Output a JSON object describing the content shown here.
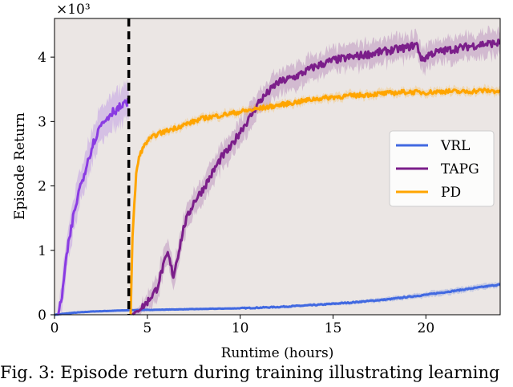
{
  "chart_data": {
    "type": "line",
    "xlabel": "Runtime (hours)",
    "ylabel": "Episode Return",
    "y_multiplier": "×10³",
    "xlim": [
      0,
      24
    ],
    "ylim": [
      0,
      4.6
    ],
    "x_ticks": [
      0,
      5,
      10,
      15,
      20
    ],
    "y_ticks": [
      0,
      1,
      2,
      3,
      4
    ],
    "grid": false,
    "background": "#ebe6e4",
    "legend_position": "right",
    "vline": {
      "x": 4.0,
      "style": "dashed",
      "color": "#000000"
    },
    "series": [
      {
        "name": "VRL",
        "color": "#4169e1",
        "x": [
          0,
          1,
          2,
          3,
          4,
          6,
          8,
          10,
          12,
          14,
          16,
          18,
          20,
          22,
          24
        ],
        "y": [
          0,
          0.03,
          0.05,
          0.06,
          0.07,
          0.08,
          0.09,
          0.1,
          0.12,
          0.15,
          0.19,
          0.24,
          0.31,
          0.39,
          0.47
        ]
      },
      {
        "name": "TAPG",
        "color": "#7b1e8a",
        "x": [
          4.2,
          4.6,
          5.0,
          5.5,
          5.8,
          6.1,
          6.4,
          6.7,
          7.0,
          7.5,
          8.0,
          8.5,
          9.0,
          9.5,
          10.0,
          10.5,
          11.0,
          11.5,
          12.0,
          13.0,
          14.0,
          15.0,
          16.0,
          17.0,
          18.0,
          19.0,
          19.5,
          19.8,
          20.2,
          21.0,
          22.0,
          23.0,
          24.0
        ],
        "y": [
          0,
          0.08,
          0.2,
          0.4,
          0.7,
          0.95,
          0.6,
          1.0,
          1.4,
          1.75,
          1.95,
          2.2,
          2.45,
          2.6,
          2.85,
          3.05,
          3.3,
          3.45,
          3.6,
          3.7,
          3.85,
          3.95,
          4.0,
          4.05,
          4.1,
          4.15,
          4.2,
          3.95,
          4.05,
          4.1,
          4.15,
          4.2,
          4.22
        ]
      },
      {
        "name": "PD",
        "color": "#ffa500",
        "x": [
          4.1,
          4.2,
          4.4,
          4.6,
          5.0,
          5.5,
          6.0,
          7.0,
          8.0,
          9.0,
          10.0,
          11.0,
          12.0,
          13.0,
          14.0,
          15.0,
          16.0,
          17.0,
          18.0,
          19.0,
          20.0,
          21.0,
          22.0,
          23.0,
          24.0
        ],
        "y": [
          0,
          1.2,
          2.2,
          2.5,
          2.7,
          2.8,
          2.85,
          2.95,
          3.05,
          3.1,
          3.15,
          3.2,
          3.25,
          3.3,
          3.35,
          3.38,
          3.4,
          3.42,
          3.44,
          3.46,
          3.45,
          3.47,
          3.46,
          3.48,
          3.47
        ]
      },
      {
        "name": "",
        "color": "#8a3be2",
        "x": [
          0.2,
          0.4,
          0.7,
          1.0,
          1.3,
          1.6,
          1.9,
          2.2,
          2.5,
          2.8,
          3.1,
          3.4,
          3.7,
          4.0
        ],
        "y": [
          0,
          0.3,
          1.0,
          1.5,
          1.9,
          2.2,
          2.5,
          2.75,
          2.95,
          3.05,
          3.15,
          3.2,
          3.25,
          3.3
        ]
      }
    ]
  },
  "caption": "Fig. 3: Episode return during training illustrating learning"
}
